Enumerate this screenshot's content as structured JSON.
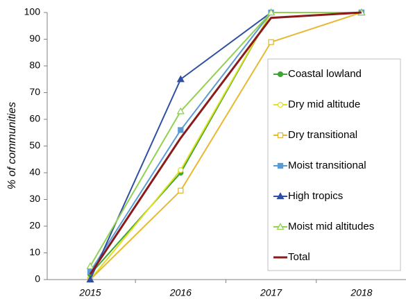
{
  "chart_data": {
    "type": "line",
    "ylabel": "% of communities",
    "categories": [
      "2015",
      "2016",
      "2017",
      "2018"
    ],
    "series": [
      {
        "name": "Coastal lowland",
        "color": "#3fa535",
        "marker": "circle",
        "filled": true,
        "values": [
          2,
          40,
          100,
          100
        ]
      },
      {
        "name": "Dry mid altitude",
        "color": "#e0e020",
        "marker": "circle",
        "filled": false,
        "values": [
          0,
          41,
          100,
          100
        ]
      },
      {
        "name": "Dry transitional",
        "color": "#e8b830",
        "marker": "square",
        "filled": false,
        "values": [
          0,
          33.3,
          88.9,
          100
        ]
      },
      {
        "name": "Moist transitional",
        "color": "#5b9bd5",
        "marker": "square",
        "filled": true,
        "values": [
          3,
          56,
          100,
          100
        ]
      },
      {
        "name": "High tropics",
        "color": "#2e4fa3",
        "marker": "triangle",
        "filled": true,
        "values": [
          0,
          75,
          100,
          100
        ]
      },
      {
        "name": "Moist mid altitudes",
        "color": "#92d050",
        "marker": "triangle",
        "filled": false,
        "values": [
          5,
          63,
          100,
          100
        ]
      },
      {
        "name": "Total",
        "color": "#8b1a1a",
        "marker": "none",
        "filled": true,
        "values": [
          2,
          53,
          98,
          100
        ]
      }
    ],
    "ylim": [
      0,
      100
    ],
    "yticks": [
      0,
      10,
      20,
      30,
      40,
      50,
      60,
      70,
      80,
      90,
      100
    ],
    "grid": false
  }
}
